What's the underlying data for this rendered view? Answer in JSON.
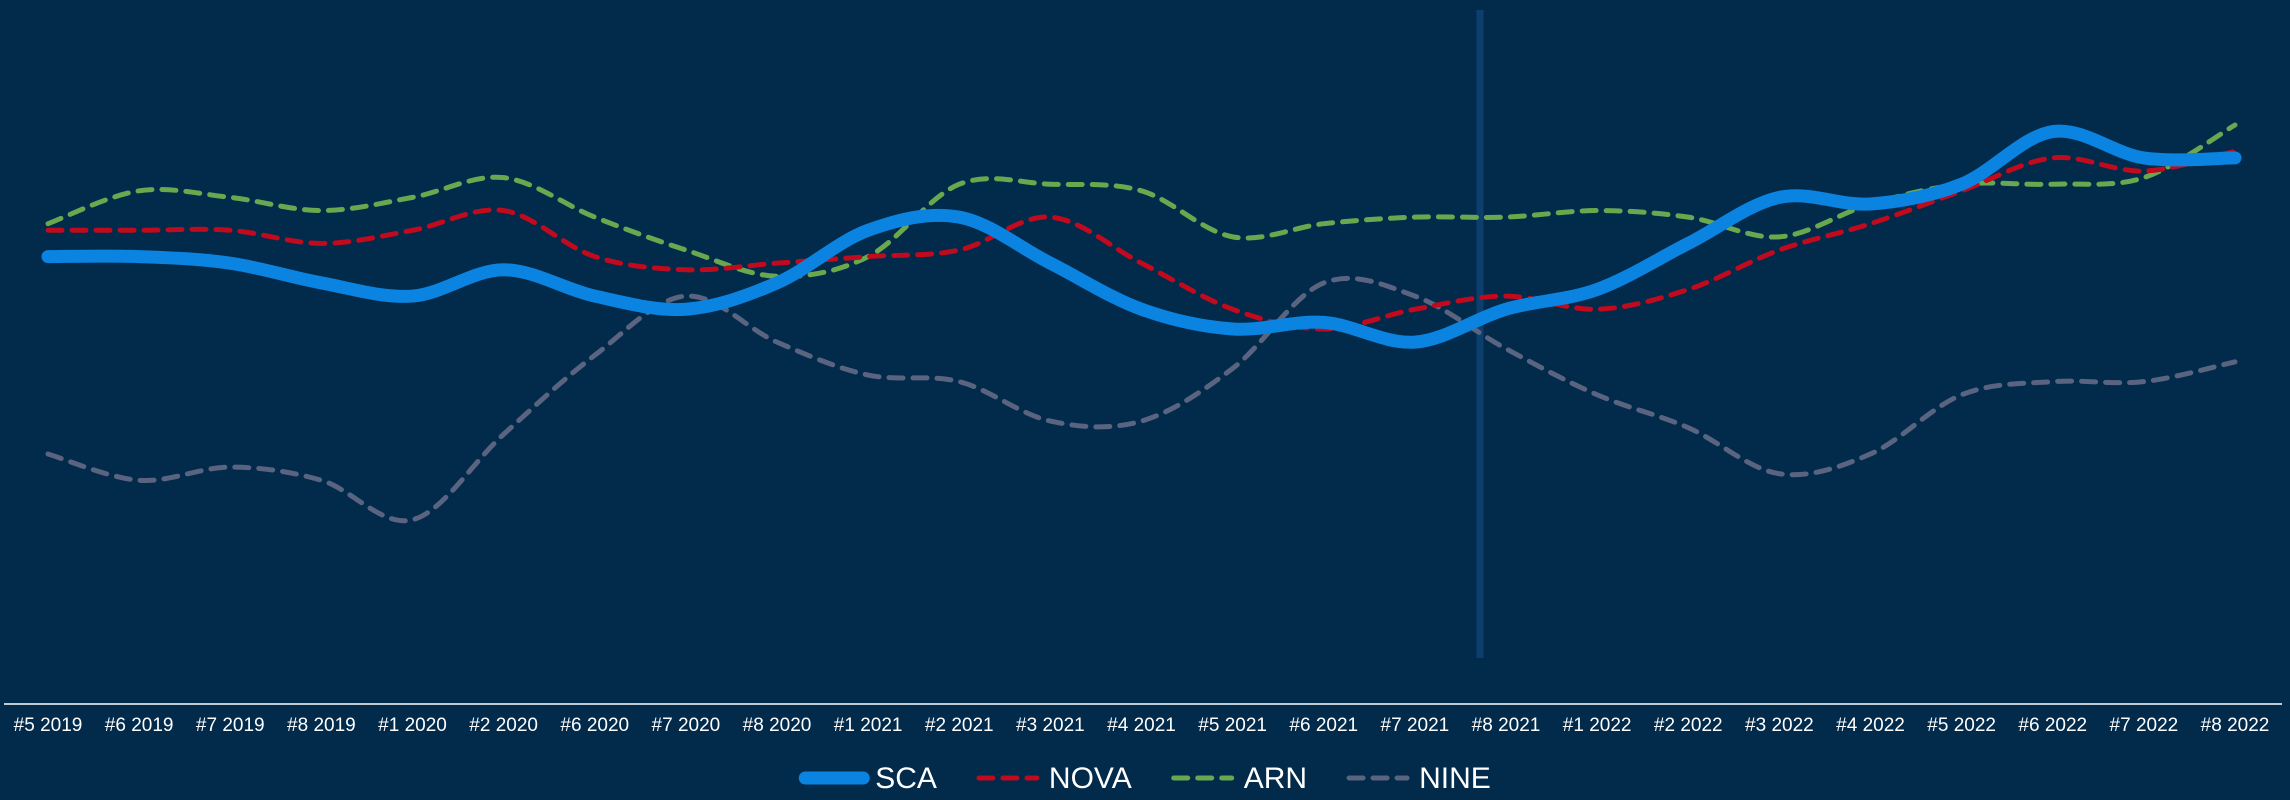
{
  "chart_data": {
    "type": "line",
    "categories": [
      "#5 2019",
      "#6 2019",
      "#7 2019",
      "#8 2019",
      "#1 2020",
      "#2 2020",
      "#6 2020",
      "#7 2020",
      "#8 2020",
      "#1 2021",
      "#2 2021",
      "#3 2021",
      "#4 2021",
      "#5 2021",
      "#6 2021",
      "#7 2021",
      "#8 2021",
      "#1 2022",
      "#2 2022",
      "#3 2022",
      "#4 2022",
      "#5 2022",
      "#6 2022",
      "#7 2022",
      "#8 2022"
    ],
    "series": [
      {
        "name": "SCA",
        "color": "#0a84e0",
        "dashed": false,
        "values": [
          68,
          68,
          67,
          64,
          62,
          66,
          62,
          60,
          64,
          72,
          74,
          67,
          60,
          57,
          58,
          55,
          60,
          63,
          70,
          77,
          76,
          79,
          87,
          83,
          83
        ]
      },
      {
        "name": "NOVA",
        "color": "#c00a1e",
        "dashed": true,
        "values": [
          72,
          72,
          72,
          70,
          72,
          75,
          68,
          66,
          67,
          68,
          69,
          74,
          67,
          60,
          57,
          60,
          62,
          60,
          63,
          69,
          73,
          78,
          83,
          81,
          84
        ]
      },
      {
        "name": "ARN",
        "color": "#6aa84f",
        "dashed": true,
        "values": [
          73,
          78,
          77,
          75,
          77,
          80,
          74,
          69,
          65,
          68,
          79,
          79,
          78,
          71,
          73,
          74,
          74,
          75,
          74,
          71,
          76,
          79,
          79,
          80,
          88
        ]
      },
      {
        "name": "NINE",
        "color": "#5a6480",
        "dashed": true,
        "values": [
          38,
          34,
          36,
          34,
          28,
          41,
          53,
          62,
          55,
          50,
          49,
          43,
          43,
          51,
          64,
          62,
          54,
          47,
          42,
          35,
          38,
          47,
          49,
          49,
          52
        ]
      }
    ],
    "ylim": [
      0,
      107
    ],
    "legend": "bottom"
  }
}
